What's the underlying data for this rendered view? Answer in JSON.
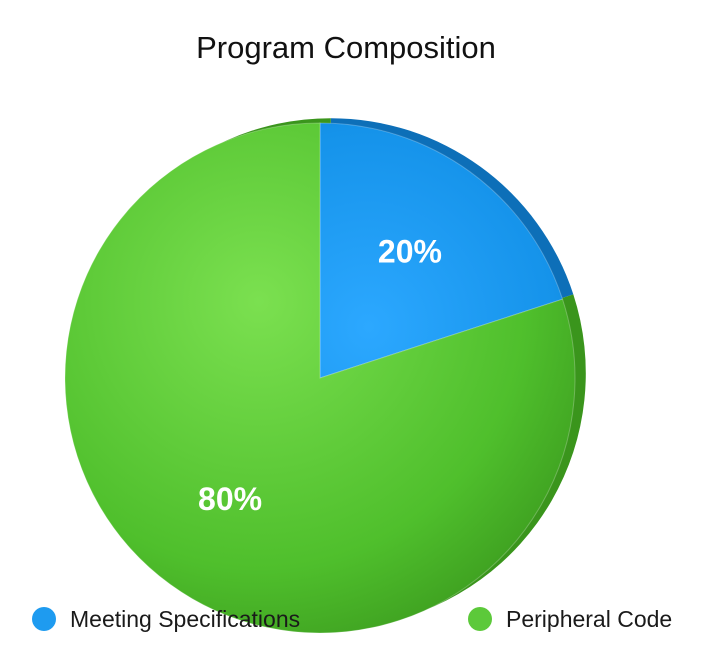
{
  "chart_data": {
    "type": "pie",
    "title": "Program Composition",
    "series": [
      {
        "name": "Meeting Specifications",
        "value": 20,
        "label": "20%",
        "color": "#1e9bf0"
      },
      {
        "name": "Peripheral Code",
        "value": 80,
        "label": "80%",
        "color": "#5cc93a"
      }
    ],
    "legend_position": "bottom",
    "start_angle": "12 o'clock, clockwise",
    "style": "3D glossy"
  }
}
